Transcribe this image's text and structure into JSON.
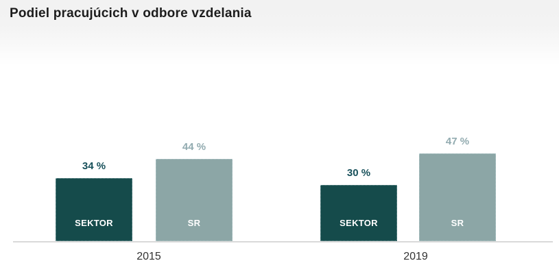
{
  "title": "Podiel pracujúcich v odbore vzdelania",
  "colors": {
    "sector_bar": "#154b4b",
    "sr_bar": "#8ca6a6",
    "sector_value_label": "#17505a",
    "sr_value_label": "#92abb0",
    "bar_inner_label": "#ffffff",
    "axis_line": "#d9d9d9",
    "year_label": "#333333",
    "title_text": "#1c1c1c",
    "header_bg": "#f2f2f2"
  },
  "chart_data": {
    "type": "bar",
    "title": "Podiel pracujúcich v odbore vzdelania",
    "categories": [
      "2015",
      "2019"
    ],
    "series": [
      {
        "name": "SEKTOR",
        "values": [
          34,
          30
        ],
        "color": "#154b4b"
      },
      {
        "name": "SR",
        "values": [
          44,
          47
        ],
        "color": "#8ca6a6"
      }
    ],
    "unit": "%",
    "xlabel": "",
    "ylabel": "",
    "ylim": [
      0,
      52
    ],
    "grid": false,
    "legend_position": "labels-inside-bars",
    "value_label_format": "NN %"
  },
  "groups": [
    {
      "year": "2015",
      "bars": [
        {
          "label": "SEKTOR",
          "value": 34,
          "value_text": "34 %"
        },
        {
          "label": "SR",
          "value": 44,
          "value_text": "44 %"
        }
      ]
    },
    {
      "year": "2019",
      "bars": [
        {
          "label": "SEKTOR",
          "value": 30,
          "value_text": "30 %"
        },
        {
          "label": "SR",
          "value": 47,
          "value_text": "47 %"
        }
      ]
    }
  ]
}
